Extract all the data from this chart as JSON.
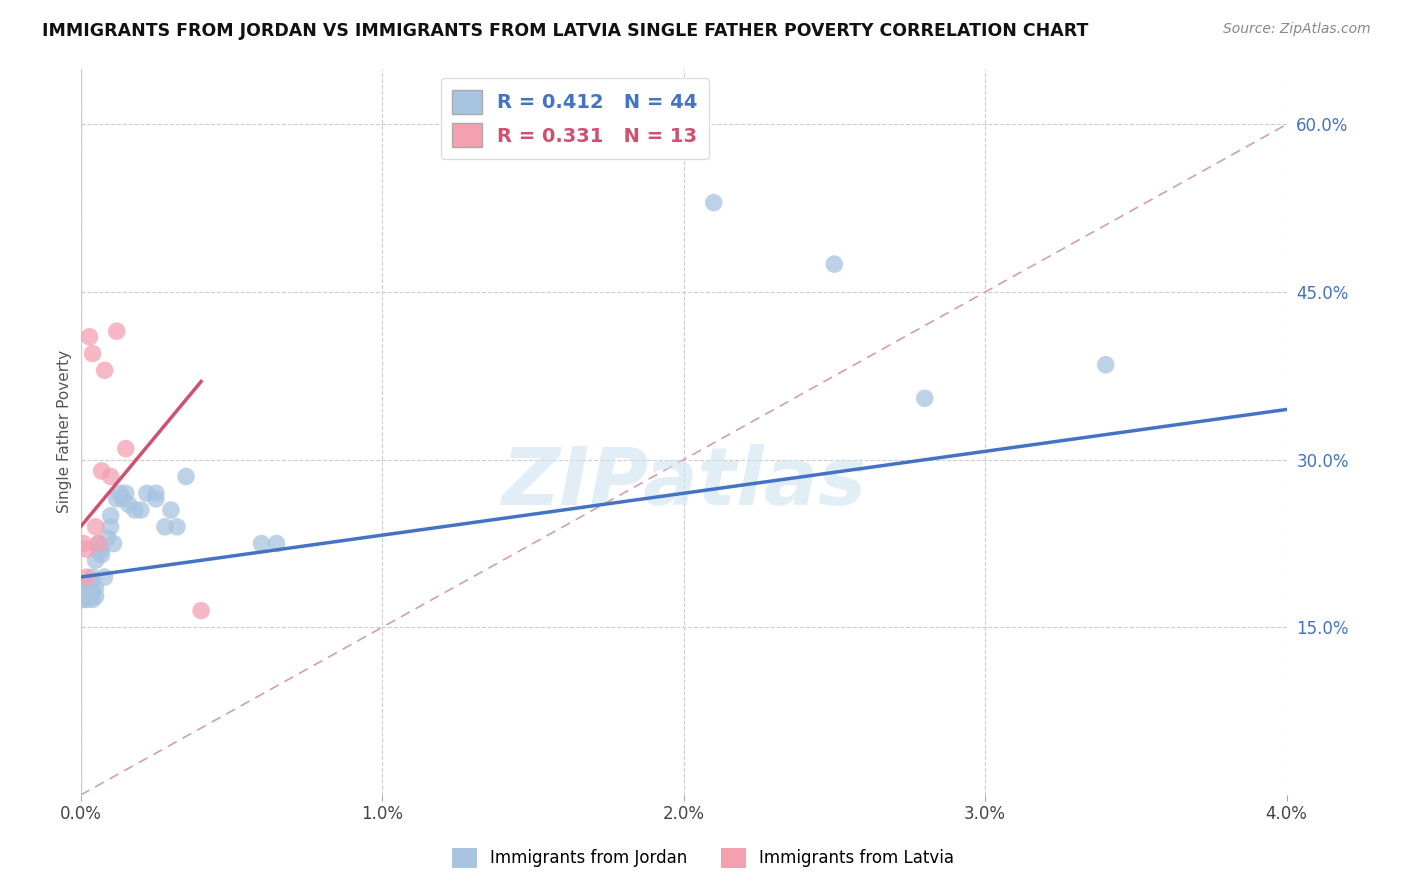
{
  "title": "IMMIGRANTS FROM JORDAN VS IMMIGRANTS FROM LATVIA SINGLE FATHER POVERTY CORRELATION CHART",
  "source": "Source: ZipAtlas.com",
  "ylabel": "Single Father Poverty",
  "x_ticks": [
    0.0,
    0.01,
    0.02,
    0.03,
    0.04
  ],
  "x_tick_labels": [
    "0.0%",
    "1.0%",
    "2.0%",
    "3.0%",
    "4.0%"
  ],
  "y_ticks_right": [
    0.0,
    0.15,
    0.3,
    0.45,
    0.6
  ],
  "y_tick_labels_right": [
    "",
    "15.0%",
    "30.0%",
    "45.0%",
    "60.0%"
  ],
  "xlim": [
    0.0,
    0.04
  ],
  "ylim": [
    0.0,
    0.65
  ],
  "jordan_R": 0.412,
  "jordan_N": 44,
  "latvia_R": 0.331,
  "latvia_N": 13,
  "jordan_color": "#a8c4e0",
  "latvia_color": "#f4a0b0",
  "jordan_line_color": "#4472c4",
  "latvia_line_color": "#d05070",
  "diagonal_color": "#cccccc",
  "background_color": "#ffffff",
  "watermark": "ZIPatlas",
  "jordan_x": [
    0.0001,
    0.0001,
    0.0002,
    0.0002,
    0.0002,
    0.0003,
    0.0003,
    0.0003,
    0.0003,
    0.0004,
    0.0004,
    0.0004,
    0.0005,
    0.0005,
    0.0005,
    0.0006,
    0.0006,
    0.0007,
    0.0007,
    0.0008,
    0.0009,
    0.001,
    0.001,
    0.0011,
    0.0012,
    0.0013,
    0.0014,
    0.0015,
    0.0016,
    0.0018,
    0.002,
    0.0022,
    0.0025,
    0.0025,
    0.0028,
    0.003,
    0.0032,
    0.0035,
    0.006,
    0.0065,
    0.021,
    0.025,
    0.028,
    0.034
  ],
  "jordan_y": [
    0.175,
    0.18,
    0.175,
    0.178,
    0.182,
    0.176,
    0.18,
    0.185,
    0.19,
    0.175,
    0.183,
    0.195,
    0.178,
    0.185,
    0.21,
    0.218,
    0.225,
    0.215,
    0.22,
    0.195,
    0.23,
    0.24,
    0.25,
    0.225,
    0.265,
    0.27,
    0.265,
    0.27,
    0.26,
    0.255,
    0.255,
    0.27,
    0.265,
    0.27,
    0.24,
    0.255,
    0.24,
    0.285,
    0.225,
    0.225,
    0.53,
    0.475,
    0.355,
    0.385
  ],
  "latvia_x": [
    0.0001,
    0.0002,
    0.0002,
    0.0003,
    0.0004,
    0.0005,
    0.0006,
    0.0007,
    0.0008,
    0.001,
    0.0012,
    0.0015,
    0.004
  ],
  "latvia_y": [
    0.225,
    0.195,
    0.22,
    0.41,
    0.395,
    0.24,
    0.225,
    0.29,
    0.38,
    0.285,
    0.415,
    0.31,
    0.165
  ],
  "jordan_line_x0": 0.0,
  "jordan_line_y0": 0.195,
  "jordan_line_x1": 0.04,
  "jordan_line_y1": 0.345,
  "latvia_line_x0": 0.0,
  "latvia_line_y0": 0.24,
  "latvia_line_x1": 0.004,
  "latvia_line_y1": 0.37
}
